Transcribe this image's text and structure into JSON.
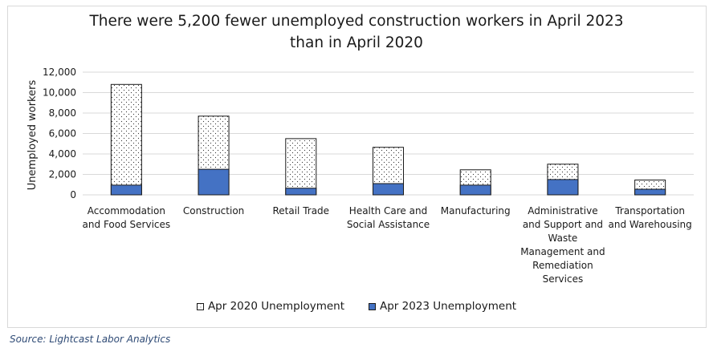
{
  "chart_data": {
    "type": "bar",
    "stacked": true,
    "title": "There were 5,200 fewer unemployed construction workers in April 2023 than in April 2020",
    "title_lines": [
      "There were 5,200 fewer unemployed construction workers in April 2023",
      "than in April 2020"
    ],
    "ylabel": "Unemployed workers",
    "ylim": [
      0,
      12000
    ],
    "yticks": [
      0,
      2000,
      4000,
      6000,
      8000,
      10000,
      12000
    ],
    "ytick_labels": [
      "0",
      "2,000",
      "4,000",
      "6,000",
      "8,000",
      "10,000",
      "12,000"
    ],
    "categories": [
      "Accommodation and Food Services",
      "Construction",
      "Retail Trade",
      "Health Care and Social Assistance",
      "Manufacturing",
      "Administrative and Support and Waste Management and Remediation Services",
      "Transportation and Warehousing"
    ],
    "category_label_lines": [
      [
        "Accommodation",
        "and Food Services"
      ],
      [
        "Construction"
      ],
      [
        "Retail Trade"
      ],
      [
        "Health Care and",
        "Social Assistance"
      ],
      [
        "Manufacturing"
      ],
      [
        "Administrative",
        "and Support and",
        "Waste",
        "Management and",
        "Remediation",
        "Services"
      ],
      [
        "Transportation",
        "and Warehousing"
      ]
    ],
    "series": [
      {
        "name": "Apr 2020 Unemployment",
        "values": [
          10800,
          7700,
          5500,
          4650,
          2450,
          3000,
          1450
        ],
        "pattern": "dotted",
        "color": "#ffffff"
      },
      {
        "name": "Apr 2023 Unemployment",
        "values": [
          950,
          2500,
          650,
          1100,
          950,
          1500,
          550
        ],
        "color": "#4472c4"
      }
    ],
    "grid": true,
    "legend_position": "bottom"
  },
  "source": "Source: Lightcast Labor Analytics"
}
